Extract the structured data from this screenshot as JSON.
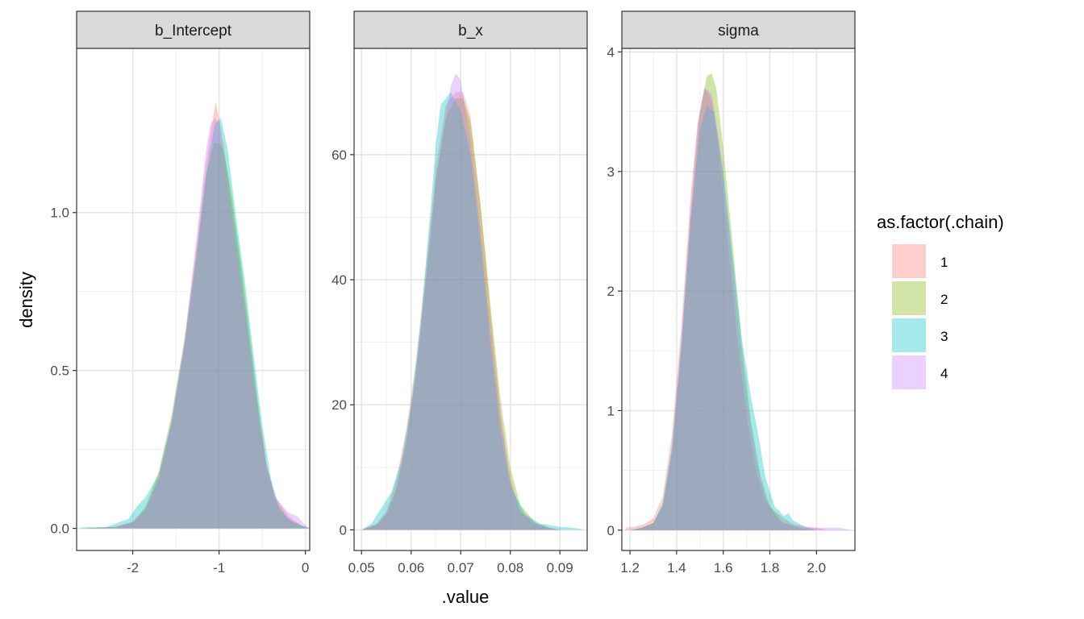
{
  "chart_data": {
    "type": "area",
    "xlabel": ".value",
    "ylabel": "density",
    "legend": {
      "title": "as.factor(.chain)",
      "position": "right",
      "entries": [
        {
          "label": "1",
          "color": "#F8766D"
        },
        {
          "label": "2",
          "color": "#7CAE00"
        },
        {
          "label": "3",
          "color": "#00BFC4"
        },
        {
          "label": "4",
          "color": "#C77CFF"
        }
      ]
    },
    "fill_opacity": 0.35,
    "grid": true,
    "panels": [
      {
        "strip": "b_Intercept",
        "xlim": [
          -2.65,
          0.05
        ],
        "ylim": [
          -0.07,
          1.52
        ],
        "xticks": [
          -2,
          -1,
          0
        ],
        "xtick_labels": [
          "-2",
          "-1",
          "0"
        ],
        "yticks": [
          0,
          0.5,
          1
        ],
        "ytick_labels": [
          "0.0",
          "0.5",
          "1.0"
        ],
        "series": [
          {
            "name": "1",
            "x": [
              -2.55,
              -2.2,
              -2.0,
              -1.85,
              -1.7,
              -1.55,
              -1.4,
              -1.25,
              -1.15,
              -1.08,
              -1.04,
              -1.0,
              -0.95,
              -0.85,
              -0.75,
              -0.65,
              -0.55,
              -0.45,
              -0.35,
              -0.2,
              -0.05,
              0.05
            ],
            "y": [
              0.0,
              0.005,
              0.02,
              0.06,
              0.16,
              0.33,
              0.58,
              0.92,
              1.16,
              1.28,
              1.35,
              1.3,
              1.22,
              1.02,
              0.82,
              0.6,
              0.38,
              0.2,
              0.1,
              0.04,
              0.01,
              0.0
            ]
          },
          {
            "name": "2",
            "x": [
              -2.55,
              -2.2,
              -2.0,
              -1.85,
              -1.7,
              -1.55,
              -1.4,
              -1.25,
              -1.15,
              -1.06,
              -1.0,
              -0.95,
              -0.85,
              -0.75,
              -0.65,
              -0.55,
              -0.45,
              -0.35,
              -0.2,
              -0.05,
              0.05
            ],
            "y": [
              0.0,
              0.005,
              0.02,
              0.07,
              0.18,
              0.36,
              0.6,
              0.9,
              1.12,
              1.22,
              1.22,
              1.2,
              1.05,
              0.85,
              0.63,
              0.4,
              0.2,
              0.09,
              0.03,
              0.01,
              0.0
            ]
          },
          {
            "name": "3",
            "x": [
              -2.6,
              -2.3,
              -2.05,
              -1.95,
              -1.85,
              -1.7,
              -1.55,
              -1.4,
              -1.25,
              -1.15,
              -1.05,
              -0.98,
              -0.9,
              -0.8,
              -0.7,
              -0.6,
              -0.5,
              -0.4,
              -0.3,
              -0.15,
              0.0,
              0.05
            ],
            "y": [
              0.003,
              0.005,
              0.03,
              0.07,
              0.1,
              0.17,
              0.34,
              0.58,
              0.88,
              1.12,
              1.28,
              1.3,
              1.2,
              0.98,
              0.78,
              0.55,
              0.33,
              0.16,
              0.06,
              0.02,
              0.005,
              0.0
            ]
          },
          {
            "name": "4",
            "x": [
              -2.55,
              -2.2,
              -2.0,
              -1.85,
              -1.7,
              -1.55,
              -1.4,
              -1.25,
              -1.15,
              -1.1,
              -1.05,
              -1.0,
              -0.95,
              -0.85,
              -0.75,
              -0.65,
              -0.55,
              -0.45,
              -0.35,
              -0.2,
              -0.1,
              0.0,
              0.05
            ],
            "y": [
              0.0,
              0.005,
              0.02,
              0.06,
              0.16,
              0.34,
              0.6,
              0.95,
              1.2,
              1.28,
              1.3,
              1.28,
              1.18,
              0.98,
              0.78,
              0.58,
              0.37,
              0.2,
              0.1,
              0.05,
              0.04,
              0.01,
              0.0
            ]
          }
        ]
      },
      {
        "strip": "b_x",
        "xlim": [
          0.0485,
          0.0955
        ],
        "ylim": [
          -3.3,
          77
        ],
        "xticks": [
          0.05,
          0.06,
          0.07,
          0.08,
          0.09
        ],
        "xtick_labels": [
          "0.05",
          "0.06",
          "0.07",
          "0.08",
          "0.09"
        ],
        "yticks": [
          0,
          20,
          40,
          60
        ],
        "ytick_labels": [
          "0",
          "20",
          "40",
          "60"
        ],
        "series": [
          {
            "name": "1",
            "x": [
              0.05,
              0.053,
              0.055,
              0.057,
              0.059,
              0.061,
              0.063,
              0.065,
              0.067,
              0.069,
              0.0705,
              0.072,
              0.074,
              0.076,
              0.078,
              0.08,
              0.082,
              0.085,
              0.088,
              0.09
            ],
            "y": [
              0.0,
              1.0,
              3.0,
              8.0,
              16.0,
              27.0,
              42.0,
              58.0,
              68.0,
              70.0,
              70.0,
              66.0,
              52.0,
              35.0,
              19.0,
              8.0,
              3.0,
              1.0,
              0.3,
              0.0
            ]
          },
          {
            "name": "2",
            "x": [
              0.05,
              0.053,
              0.055,
              0.057,
              0.059,
              0.061,
              0.063,
              0.065,
              0.067,
              0.069,
              0.0705,
              0.072,
              0.074,
              0.076,
              0.078,
              0.08,
              0.082,
              0.085,
              0.088,
              0.09
            ],
            "y": [
              0.0,
              0.8,
              2.5,
              6.5,
              14.0,
              25.0,
              40.0,
              56.0,
              66.0,
              69.0,
              69.0,
              65.0,
              52.0,
              36.0,
              21.0,
              10.0,
              4.0,
              1.2,
              0.3,
              0.0
            ]
          },
          {
            "name": "3",
            "x": [
              0.05,
              0.052,
              0.054,
              0.056,
              0.058,
              0.06,
              0.062,
              0.064,
              0.065,
              0.066,
              0.068,
              0.07,
              0.072,
              0.074,
              0.076,
              0.078,
              0.08,
              0.083,
              0.086,
              0.09,
              0.093,
              0.095
            ],
            "y": [
              0.0,
              1.0,
              3.5,
              6.0,
              11.0,
              20.0,
              34.0,
              52.0,
              62.0,
              68.0,
              70.0,
              67.0,
              60.0,
              46.0,
              30.0,
              16.0,
              7.0,
              2.5,
              1.0,
              0.5,
              0.3,
              0.0
            ]
          },
          {
            "name": "4",
            "x": [
              0.05,
              0.053,
              0.055,
              0.057,
              0.059,
              0.061,
              0.063,
              0.065,
              0.067,
              0.068,
              0.069,
              0.07,
              0.072,
              0.074,
              0.076,
              0.078,
              0.08,
              0.082,
              0.085,
              0.088,
              0.09
            ],
            "y": [
              0.0,
              0.8,
              2.5,
              6.5,
              14.0,
              25.0,
              40.0,
              56.0,
              66.0,
              71.0,
              73.0,
              72.0,
              62.0,
              48.0,
              32.0,
              18.0,
              8.0,
              3.0,
              1.0,
              0.3,
              0.0
            ]
          }
        ]
      },
      {
        "strip": "sigma",
        "xlim": [
          1.165,
          2.165
        ],
        "ylim": [
          -0.17,
          4.03
        ],
        "xticks": [
          1.2,
          1.4,
          1.6,
          1.8,
          2.0
        ],
        "xtick_labels": [
          "1.2",
          "1.4",
          "1.6",
          "1.8",
          "2.0"
        ],
        "yticks": [
          0,
          1,
          2,
          3,
          4
        ],
        "ytick_labels": [
          "0",
          "1",
          "2",
          "3",
          "4"
        ],
        "series": [
          {
            "name": "1",
            "x": [
              1.18,
              1.22,
              1.26,
              1.3,
              1.34,
              1.38,
              1.42,
              1.46,
              1.49,
              1.52,
              1.55,
              1.58,
              1.62,
              1.66,
              1.7,
              1.74,
              1.78,
              1.82,
              1.86,
              1.9,
              1.95,
              2.0,
              2.05
            ],
            "y": [
              0.02,
              0.03,
              0.05,
              0.1,
              0.28,
              0.8,
              1.7,
              2.8,
              3.4,
              3.7,
              3.6,
              3.2,
              2.4,
              1.6,
              0.95,
              0.5,
              0.25,
              0.16,
              0.1,
              0.05,
              0.03,
              0.02,
              0.0
            ]
          },
          {
            "name": "2",
            "x": [
              1.2,
              1.25,
              1.3,
              1.34,
              1.38,
              1.42,
              1.46,
              1.5,
              1.53,
              1.55,
              1.57,
              1.6,
              1.64,
              1.68,
              1.72,
              1.76,
              1.8,
              1.85,
              1.9,
              1.95,
              2.0
            ],
            "y": [
              0.0,
              0.02,
              0.06,
              0.2,
              0.65,
              1.5,
              2.6,
              3.5,
              3.8,
              3.82,
              3.7,
              3.2,
              2.4,
              1.55,
              0.9,
              0.45,
              0.2,
              0.07,
              0.03,
              0.01,
              0.0
            ]
          },
          {
            "name": "3",
            "x": [
              1.2,
              1.25,
              1.3,
              1.34,
              1.38,
              1.42,
              1.46,
              1.5,
              1.53,
              1.56,
              1.6,
              1.64,
              1.68,
              1.72,
              1.75,
              1.78,
              1.82,
              1.86,
              1.88,
              1.9,
              1.95,
              2.0
            ],
            "y": [
              0.0,
              0.02,
              0.06,
              0.22,
              0.7,
              1.55,
              2.6,
              3.35,
              3.55,
              3.5,
              3.0,
              2.3,
              1.6,
              1.1,
              0.8,
              0.45,
              0.2,
              0.12,
              0.14,
              0.08,
              0.03,
              0.0
            ]
          },
          {
            "name": "4",
            "x": [
              1.2,
              1.25,
              1.3,
              1.34,
              1.38,
              1.42,
              1.46,
              1.49,
              1.52,
              1.55,
              1.58,
              1.62,
              1.66,
              1.7,
              1.74,
              1.78,
              1.82,
              1.86,
              1.9,
              1.95,
              2.0,
              2.05,
              2.1,
              2.15
            ],
            "y": [
              0.0,
              0.02,
              0.06,
              0.2,
              0.68,
              1.6,
              2.7,
              3.4,
              3.7,
              3.65,
              3.3,
              2.6,
              1.8,
              1.1,
              0.6,
              0.28,
              0.12,
              0.06,
              0.04,
              0.02,
              0.02,
              0.02,
              0.02,
              0.0
            ]
          }
        ]
      }
    ]
  }
}
